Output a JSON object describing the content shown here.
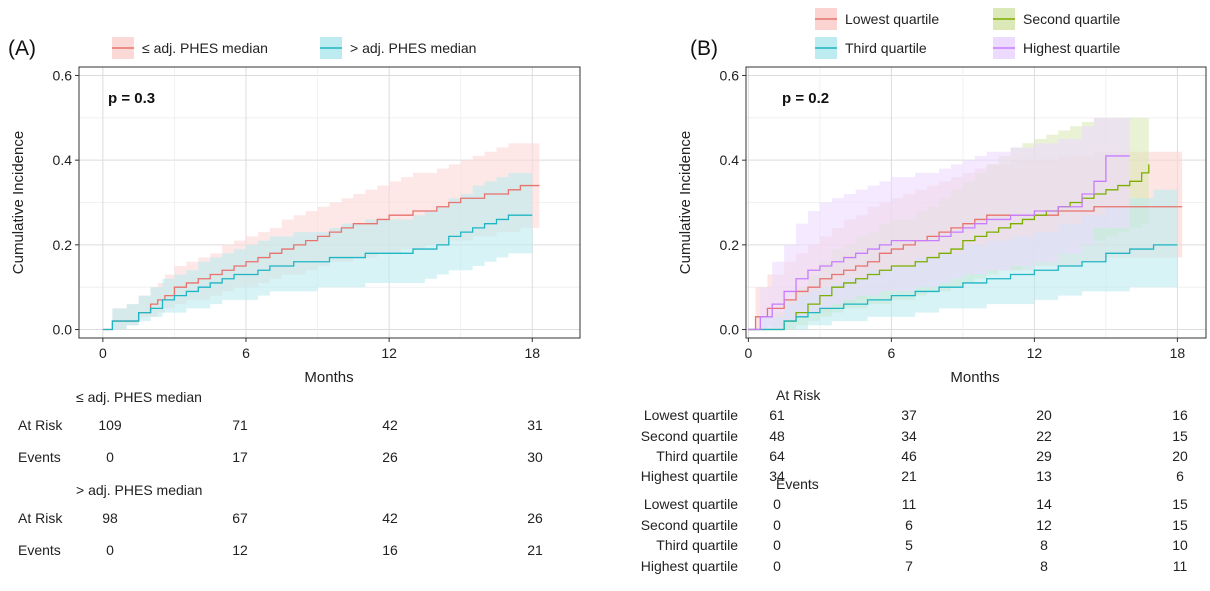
{
  "chart_data": [
    {
      "type": "line",
      "panel_label": "(A)",
      "xlabel": "Months",
      "ylabel": "Cumulative Incidence",
      "xlim": [
        -1,
        20
      ],
      "ylim": [
        -0.02,
        0.62
      ],
      "xticks": [
        "0",
        "6",
        "12",
        "18"
      ],
      "yticks": [
        "0.0",
        "0.2",
        "0.4",
        "0.6"
      ],
      "grid": true,
      "legend_position": "top",
      "annotation": "p = 0.3",
      "series": [
        {
          "name": "≤ adj. PHES median",
          "color": "#e8726c",
          "band": "#fbd9d7",
          "x": [
            0,
            0.4,
            1.0,
            1.5,
            2.0,
            2.3,
            2.6,
            3.0,
            3.5,
            4.0,
            4.5,
            5.0,
            5.5,
            6.0,
            6.5,
            7.0,
            7.5,
            8.0,
            8.5,
            9.0,
            9.5,
            10.0,
            10.5,
            11.0,
            11.5,
            12.0,
            12.5,
            13.0,
            13.5,
            14.0,
            14.5,
            15.0,
            15.5,
            16.0,
            16.5,
            17.0,
            17.5,
            18.3
          ],
          "y": [
            0,
            0.02,
            0.02,
            0.04,
            0.06,
            0.07,
            0.08,
            0.1,
            0.11,
            0.12,
            0.13,
            0.14,
            0.15,
            0.16,
            0.17,
            0.18,
            0.19,
            0.2,
            0.21,
            0.22,
            0.23,
            0.24,
            0.25,
            0.25,
            0.26,
            0.27,
            0.27,
            0.28,
            0.28,
            0.29,
            0.3,
            0.31,
            0.31,
            0.32,
            0.32,
            0.33,
            0.34,
            0.34
          ],
          "lower": [
            0,
            0,
            0,
            0.01,
            0.03,
            0.03,
            0.04,
            0.05,
            0.06,
            0.07,
            0.07,
            0.08,
            0.09,
            0.1,
            0.1,
            0.11,
            0.12,
            0.13,
            0.13,
            0.14,
            0.15,
            0.16,
            0.16,
            0.17,
            0.17,
            0.18,
            0.18,
            0.19,
            0.19,
            0.2,
            0.2,
            0.21,
            0.21,
            0.22,
            0.22,
            0.23,
            0.23,
            0.24
          ],
          "upper": [
            0,
            0.05,
            0.06,
            0.08,
            0.1,
            0.11,
            0.13,
            0.15,
            0.16,
            0.17,
            0.18,
            0.2,
            0.21,
            0.22,
            0.23,
            0.24,
            0.26,
            0.27,
            0.28,
            0.29,
            0.3,
            0.31,
            0.32,
            0.33,
            0.34,
            0.35,
            0.36,
            0.37,
            0.37,
            0.38,
            0.39,
            0.4,
            0.41,
            0.42,
            0.43,
            0.44,
            0.44,
            0.44
          ]
        },
        {
          "name": "> adj. PHES median",
          "color": "#1fb5c3",
          "band": "#bcebf0",
          "x": [
            0,
            0.4,
            1.0,
            1.5,
            2.0,
            2.5,
            3.0,
            3.5,
            4.0,
            4.5,
            5.0,
            5.5,
            6.0,
            6.5,
            7.0,
            8.0,
            9.0,
            9.5,
            10.0,
            11.0,
            12.0,
            13.0,
            13.5,
            14.0,
            14.5,
            15.0,
            15.5,
            16.0,
            16.5,
            17.0,
            18.0
          ],
          "y": [
            0,
            0.02,
            0.02,
            0.04,
            0.05,
            0.07,
            0.08,
            0.09,
            0.1,
            0.11,
            0.12,
            0.13,
            0.13,
            0.14,
            0.15,
            0.16,
            0.16,
            0.17,
            0.17,
            0.18,
            0.18,
            0.19,
            0.19,
            0.2,
            0.22,
            0.23,
            0.24,
            0.25,
            0.26,
            0.27,
            0.27
          ],
          "lower": [
            0,
            0,
            0,
            0.01,
            0.02,
            0.03,
            0.04,
            0.04,
            0.05,
            0.05,
            0.06,
            0.07,
            0.07,
            0.07,
            0.08,
            0.09,
            0.09,
            0.1,
            0.1,
            0.1,
            0.11,
            0.11,
            0.11,
            0.12,
            0.13,
            0.14,
            0.14,
            0.15,
            0.16,
            0.17,
            0.18
          ],
          "upper": [
            0,
            0.05,
            0.06,
            0.08,
            0.1,
            0.12,
            0.13,
            0.14,
            0.16,
            0.17,
            0.18,
            0.19,
            0.2,
            0.21,
            0.22,
            0.23,
            0.23,
            0.24,
            0.25,
            0.26,
            0.26,
            0.27,
            0.28,
            0.29,
            0.31,
            0.32,
            0.34,
            0.35,
            0.36,
            0.37,
            0.38
          ]
        }
      ],
      "risk_table": {
        "columns": [
          "0",
          "6",
          "12",
          "18"
        ],
        "groups": [
          {
            "title": "≤ adj. PHES median",
            "rows": [
              {
                "label": "At Risk",
                "values": [
                  "109",
                  "71",
                  "42",
                  "31"
                ]
              },
              {
                "label": "Events",
                "values": [
                  "0",
                  "17",
                  "26",
                  "30"
                ]
              }
            ]
          },
          {
            "title": "> adj. PHES median",
            "rows": [
              {
                "label": "At Risk",
                "values": [
                  "98",
                  "67",
                  "42",
                  "26"
                ]
              },
              {
                "label": "Events",
                "values": [
                  "0",
                  "12",
                  "16",
                  "21"
                ]
              }
            ]
          }
        ]
      }
    },
    {
      "type": "line",
      "panel_label": "(B)",
      "xlabel": "Months",
      "ylabel": "Cumulative Incidence",
      "xlim": [
        -0.1,
        19.2
      ],
      "ylim": [
        -0.02,
        0.62
      ],
      "xticks": [
        "0",
        "6",
        "12",
        "18"
      ],
      "yticks": [
        "0.0",
        "0.2",
        "0.4",
        "0.6"
      ],
      "grid": true,
      "legend_position": "top",
      "annotation": "p = 0.2",
      "series": [
        {
          "name": "Lowest quartile",
          "color": "#e8726c",
          "band": "#fbd3d1",
          "x": [
            0,
            0.3,
            0.8,
            1.5,
            2.0,
            2.5,
            3.0,
            3.5,
            4.0,
            4.5,
            5.0,
            5.5,
            6.0,
            6.5,
            7.0,
            7.5,
            8.0,
            8.5,
            9.0,
            9.5,
            10.0,
            11.0,
            12.0,
            13.0,
            14.0,
            14.5,
            15.0,
            16.0,
            18.2
          ],
          "y": [
            0,
            0.03,
            0.05,
            0.07,
            0.09,
            0.1,
            0.12,
            0.13,
            0.14,
            0.15,
            0.16,
            0.18,
            0.19,
            0.2,
            0.21,
            0.22,
            0.23,
            0.24,
            0.25,
            0.26,
            0.27,
            0.27,
            0.27,
            0.28,
            0.28,
            0.29,
            0.29,
            0.29,
            0.29
          ],
          "lower": [
            0,
            0,
            0,
            0.01,
            0.02,
            0.03,
            0.04,
            0.04,
            0.05,
            0.06,
            0.07,
            0.08,
            0.09,
            0.09,
            0.1,
            0.11,
            0.12,
            0.12,
            0.13,
            0.13,
            0.14,
            0.14,
            0.14,
            0.15,
            0.15,
            0.16,
            0.16,
            0.17,
            0.17
          ],
          "upper": [
            0,
            0.1,
            0.13,
            0.16,
            0.18,
            0.2,
            0.22,
            0.24,
            0.26,
            0.27,
            0.29,
            0.3,
            0.31,
            0.32,
            0.33,
            0.34,
            0.35,
            0.36,
            0.37,
            0.38,
            0.39,
            0.4,
            0.4,
            0.41,
            0.41,
            0.42,
            0.42,
            0.42,
            0.42
          ]
        },
        {
          "name": "Second quartile",
          "color": "#7cae00",
          "band": "#dbe9b8",
          "x": [
            0,
            1.0,
            1.5,
            2.0,
            2.5,
            3.0,
            3.5,
            4.0,
            4.5,
            5.0,
            5.5,
            6.0,
            7.0,
            7.5,
            8.0,
            8.5,
            9.0,
            9.5,
            10.0,
            10.5,
            11.0,
            11.5,
            12.0,
            12.5,
            13.0,
            13.5,
            14.0,
            14.5,
            15.0,
            15.5,
            16.0,
            16.5,
            16.8
          ],
          "y": [
            0,
            0.0,
            0.02,
            0.04,
            0.06,
            0.08,
            0.1,
            0.11,
            0.12,
            0.13,
            0.14,
            0.15,
            0.16,
            0.17,
            0.18,
            0.19,
            0.21,
            0.22,
            0.23,
            0.24,
            0.25,
            0.26,
            0.27,
            0.28,
            0.29,
            0.3,
            0.31,
            0.32,
            0.33,
            0.34,
            0.35,
            0.37,
            0.39
          ],
          "lower": [
            0,
            0,
            0,
            0.0,
            0.01,
            0.02,
            0.03,
            0.04,
            0.05,
            0.05,
            0.06,
            0.06,
            0.07,
            0.08,
            0.09,
            0.09,
            0.1,
            0.11,
            0.12,
            0.13,
            0.14,
            0.14,
            0.15,
            0.16,
            0.17,
            0.18,
            0.19,
            0.2,
            0.21,
            0.22,
            0.23,
            0.24,
            0.25
          ],
          "upper": [
            0,
            0.04,
            0.07,
            0.1,
            0.13,
            0.16,
            0.19,
            0.2,
            0.22,
            0.23,
            0.25,
            0.26,
            0.28,
            0.29,
            0.31,
            0.33,
            0.35,
            0.37,
            0.39,
            0.41,
            0.43,
            0.44,
            0.45,
            0.46,
            0.47,
            0.48,
            0.49,
            0.5,
            0.5,
            0.5,
            0.5,
            0.5,
            0.5
          ]
        },
        {
          "name": "Third quartile",
          "color": "#1fb5c3",
          "band": "#bcebf0",
          "x": [
            0,
            0.5,
            1.5,
            2.0,
            2.5,
            3.0,
            3.5,
            4.0,
            5.0,
            6.0,
            7.0,
            8.0,
            9.0,
            10.0,
            11.0,
            12.0,
            13.0,
            14.0,
            15.0,
            16.0,
            17.0,
            18.0
          ],
          "y": [
            0,
            0.0,
            0.02,
            0.03,
            0.04,
            0.05,
            0.05,
            0.06,
            0.07,
            0.08,
            0.09,
            0.1,
            0.11,
            0.12,
            0.13,
            0.14,
            0.15,
            0.16,
            0.18,
            0.19,
            0.2,
            0.2
          ],
          "lower": [
            0,
            0,
            0,
            0.0,
            0.0,
            0.01,
            0.01,
            0.02,
            0.02,
            0.03,
            0.03,
            0.04,
            0.05,
            0.05,
            0.06,
            0.06,
            0.07,
            0.08,
            0.09,
            0.09,
            0.1,
            0.1
          ],
          "upper": [
            0,
            0.03,
            0.06,
            0.08,
            0.09,
            0.1,
            0.11,
            0.12,
            0.14,
            0.15,
            0.17,
            0.18,
            0.2,
            0.21,
            0.22,
            0.23,
            0.25,
            0.27,
            0.29,
            0.31,
            0.33,
            0.33
          ]
        },
        {
          "name": "Highest quartile",
          "color": "#c77cff",
          "band": "#ecdaff",
          "x": [
            0,
            0.5,
            1.0,
            1.5,
            2.0,
            2.5,
            3.0,
            3.5,
            4.0,
            4.5,
            5.0,
            5.5,
            6.0,
            7.0,
            8.0,
            8.5,
            9.0,
            9.5,
            10.0,
            11.0,
            12.0,
            13.0,
            14.0,
            14.5,
            15.0,
            16.0
          ],
          "y": [
            0,
            0.03,
            0.06,
            0.09,
            0.12,
            0.14,
            0.15,
            0.16,
            0.17,
            0.18,
            0.19,
            0.2,
            0.21,
            0.21,
            0.22,
            0.23,
            0.24,
            0.25,
            0.26,
            0.27,
            0.28,
            0.29,
            0.32,
            0.35,
            0.41,
            0.41
          ],
          "lower": [
            0,
            0,
            0,
            0.0,
            0.02,
            0.03,
            0.04,
            0.05,
            0.06,
            0.07,
            0.08,
            0.08,
            0.09,
            0.09,
            0.1,
            0.11,
            0.12,
            0.13,
            0.13,
            0.14,
            0.15,
            0.16,
            0.18,
            0.2,
            0.24,
            0.24
          ],
          "upper": [
            0,
            0.1,
            0.16,
            0.2,
            0.25,
            0.28,
            0.3,
            0.31,
            0.32,
            0.33,
            0.34,
            0.35,
            0.36,
            0.37,
            0.38,
            0.39,
            0.4,
            0.41,
            0.42,
            0.43,
            0.44,
            0.45,
            0.48,
            0.5,
            0.5,
            0.5
          ]
        }
      ],
      "risk_table": {
        "columns": [
          "0",
          "6",
          "12",
          "18"
        ],
        "sections": [
          {
            "title": "At Risk",
            "rows": [
              {
                "label": "Lowest quartile",
                "values": [
                  "61",
                  "37",
                  "20",
                  "16"
                ]
              },
              {
                "label": "Second quartile",
                "values": [
                  "48",
                  "34",
                  "22",
                  "15"
                ]
              },
              {
                "label": "Third quartile",
                "values": [
                  "64",
                  "46",
                  "29",
                  "20"
                ]
              },
              {
                "label": "Highest quartile",
                "values": [
                  "34",
                  "21",
                  "13",
                  "6"
                ]
              }
            ]
          },
          {
            "title": "Events",
            "rows": [
              {
                "label": "Lowest quartile",
                "values": [
                  "0",
                  "11",
                  "14",
                  "15"
                ]
              },
              {
                "label": "Second quartile",
                "values": [
                  "0",
                  "6",
                  "12",
                  "15"
                ]
              },
              {
                "label": "Third quartile",
                "values": [
                  "0",
                  "5",
                  "8",
                  "10"
                ]
              },
              {
                "label": "Highest quartile",
                "values": [
                  "0",
                  "7",
                  "8",
                  "11"
                ]
              }
            ]
          }
        ]
      }
    }
  ]
}
